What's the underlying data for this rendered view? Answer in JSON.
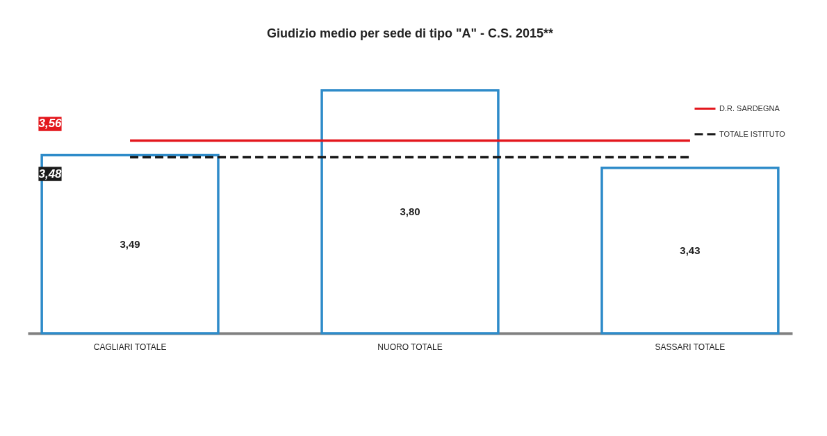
{
  "chart_data": {
    "type": "bar",
    "title": "Giudizio medio per sede di tipo \"A\" -  C.S. 2015**",
    "categories": [
      "CAGLIARI TOTALE",
      "NUORO TOTALE",
      "SASSARI TOTALE"
    ],
    "values": [
      3.49,
      3.8,
      3.43
    ],
    "value_labels": [
      "3,49",
      "3,80",
      "3,43"
    ],
    "color": "#2e8bc9",
    "ylim": [
      2.64,
      3.8
    ],
    "tick_labels": "x",
    "grid": false,
    "legend": "top right",
    "ref_lines": [
      {
        "axis": "y",
        "value": 3.56,
        "label": "D.R. SARDEGNA",
        "color": "#e3171d",
        "line_style": "solid"
      },
      {
        "axis": "y",
        "value": 3.48,
        "label": "TOTALE ISTITUTO",
        "color": "#1a1a1a",
        "line_style": "dashed"
      }
    ],
    "annotations": [
      "3,56",
      "3,48"
    ]
  }
}
